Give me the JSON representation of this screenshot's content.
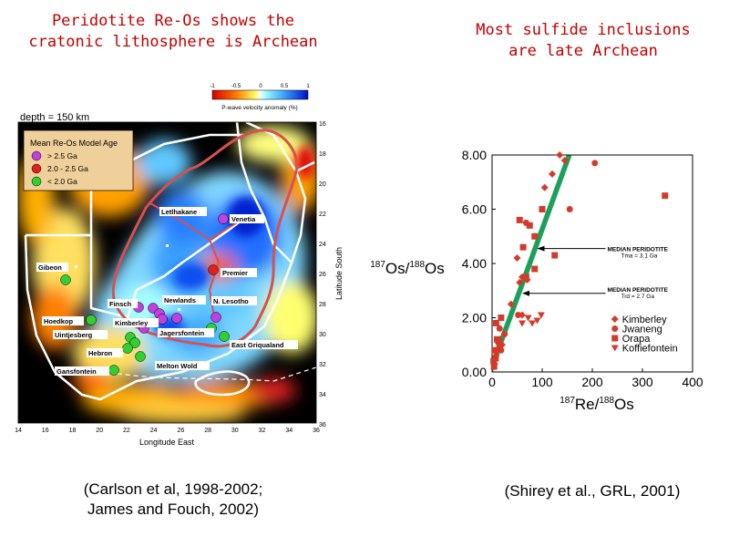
{
  "left_title": [
    "Peridotite Re-Os shows the",
    "cratonic lithosphere is Archean"
  ],
  "right_title": [
    "Most sulfide inclusions",
    "are late Archean"
  ],
  "left_caption": [
    "(Carlson et al, 1998-2002;",
    "James and Fouch, 2002)"
  ],
  "right_caption": "(Shirey et al., GRL, 2001)",
  "map": {
    "depth_label": "depth = 150 km",
    "colorbar": {
      "ticks": [
        "-1",
        "-0.5",
        "0",
        "0.5",
        "1"
      ],
      "label": "P-wave velocity anomaly (%)"
    },
    "legend": {
      "title": "Mean Re-Os Model Age",
      "items": [
        {
          "label": "> 2.5 Ga",
          "color": "#c040e0"
        },
        {
          "label": "2.0 - 2.5 Ga",
          "color": "#e02020"
        },
        {
          "label": "< 2.0 Ga",
          "color": "#30d030"
        }
      ]
    },
    "places": [
      "Letlhakane",
      "Venetia",
      "Gibeon",
      "Premier",
      "Finsch",
      "Newlands",
      "N. Lesotho",
      "Hoedkop",
      "Kimberley",
      "Jagersfontein",
      "Uintjesberg",
      "Hebron",
      "East Griqualand",
      "Gansfontein",
      "Melton Wold"
    ],
    "x_ticks": [
      "14",
      "16",
      "18",
      "20",
      "22",
      "24",
      "26",
      "28",
      "30",
      "32",
      "34",
      "36"
    ],
    "y_ticks": [
      "16",
      "18",
      "20",
      "22",
      "24",
      "26",
      "28",
      "30",
      "32",
      "34",
      "36"
    ],
    "xlabel": "Longitude East",
    "ylabel": "Latitude South"
  },
  "chart_data": {
    "type": "scatter",
    "xlabel_parts": {
      "sup1": "187",
      "main1": "Re/",
      "sup2": "188",
      "main2": "Os"
    },
    "ylabel_parts": {
      "sup1": "187",
      "main1": "Os/",
      "sup2": "188",
      "main2": "Os"
    },
    "xlim": [
      0,
      400
    ],
    "ylim": [
      0,
      8
    ],
    "x_ticks": [
      "0",
      "100",
      "200",
      "300",
      "400"
    ],
    "y_ticks": [
      "0.00",
      "2.00",
      "4.00",
      "6.00",
      "8.00"
    ],
    "band": {
      "color": "#1aa05a",
      "from": [
        0,
        0.2
      ],
      "to": [
        158,
        8.2
      ],
      "width_y": 0.55
    },
    "annotations": [
      {
        "lines": [
          "MEDIAN PERIDOTITE",
          "Tma = 3.1 Ga"
        ],
        "x": 230,
        "y": 4.45,
        "arrow_to": [
          90,
          4.55
        ]
      },
      {
        "lines": [
          "MEDIAN PERIDOTITE",
          "Trd = 2.7 Ga"
        ],
        "x": 230,
        "y": 2.95,
        "arrow_to": [
          60,
          2.9
        ]
      }
    ],
    "legend": [
      "Kimberley",
      "Jwaneng",
      "Orapa",
      "Koffiefontein"
    ],
    "series": [
      {
        "name": "Kimberley",
        "marker": "diamond",
        "points": [
          [
            135,
            8.0
          ],
          [
            105,
            6.8
          ],
          [
            120,
            7.3
          ],
          [
            145,
            7.8
          ],
          [
            60,
            3.5
          ],
          [
            55,
            3.3
          ],
          [
            70,
            3.4
          ],
          [
            38,
            2.5
          ],
          [
            60,
            2.1
          ],
          [
            15,
            1.2
          ],
          [
            20,
            1.0
          ],
          [
            10,
            0.8
          ],
          [
            5,
            0.3
          ],
          [
            8,
            0.6
          ],
          [
            50,
            4.2
          ]
        ]
      },
      {
        "name": "Jwaneng",
        "marker": "circle",
        "points": [
          [
            205,
            7.7
          ],
          [
            155,
            6.0
          ],
          [
            68,
            5.5
          ],
          [
            15,
            1.6
          ],
          [
            52,
            2.1
          ],
          [
            18,
            0.8
          ],
          [
            25,
            1.4
          ],
          [
            12,
            1.1
          ]
        ]
      },
      {
        "name": "Orapa",
        "marker": "square",
        "points": [
          [
            345,
            6.5
          ],
          [
            100,
            6.0
          ],
          [
            85,
            5.0
          ],
          [
            62,
            4.6
          ],
          [
            75,
            5.4
          ],
          [
            55,
            5.6
          ],
          [
            125,
            4.3
          ],
          [
            85,
            3.8
          ],
          [
            68,
            3.5
          ],
          [
            18,
            2.0
          ],
          [
            8,
            1.8
          ],
          [
            5,
            0.8
          ],
          [
            3,
            0.4
          ],
          [
            10,
            1.2
          ],
          [
            4,
            0.2
          ],
          [
            15,
            1.0
          ],
          [
            7,
            0.5
          ]
        ]
      },
      {
        "name": "Koffiefontein",
        "marker": "triangle",
        "points": [
          [
            98,
            2.1
          ],
          [
            80,
            1.8
          ],
          [
            72,
            2.0
          ],
          [
            60,
            1.8
          ],
          [
            90,
            1.9
          ]
        ]
      }
    ]
  }
}
